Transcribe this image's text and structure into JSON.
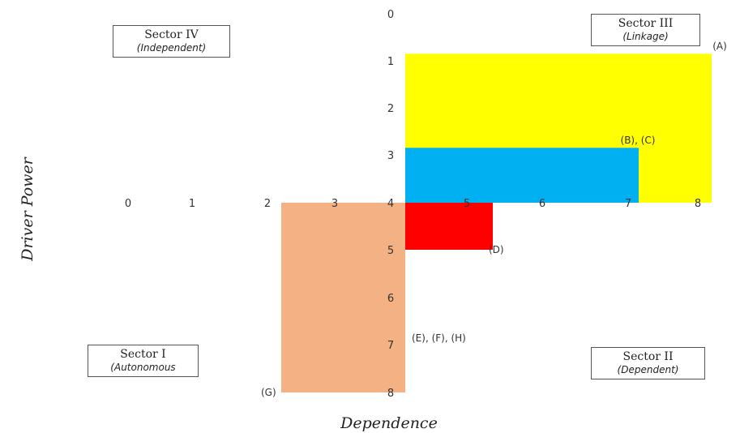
{
  "chart_data": {
    "type": "bar",
    "xlabel": "Dependence",
    "ylabel": "Driver Power",
    "xlim": [
      0,
      8
    ],
    "ylim": [
      0,
      8
    ],
    "x_ticks": [
      "0",
      "1",
      "2",
      "3",
      "4",
      "5",
      "6",
      "7",
      "8"
    ],
    "y_ticks": [
      "0",
      "1",
      "2",
      "3",
      "4",
      "5",
      "6",
      "7",
      "8"
    ],
    "quadrants": [
      {
        "title": "Sector IV",
        "subtitle": "(Independent)",
        "position": "top-left"
      },
      {
        "title": "Sector III",
        "subtitle": "(Linkage)",
        "position": "top-right"
      },
      {
        "title": "Sector I",
        "subtitle": "(Autonomous",
        "position": "bottom-left"
      },
      {
        "title": "Sector II",
        "subtitle": "(Dependent)",
        "position": "bottom-right"
      }
    ],
    "regions": [
      {
        "label": "(A)",
        "x0": 4,
        "x1": 8.2,
        "y0": 0.85,
        "y1": 4,
        "color": "#ffff00"
      },
      {
        "label": "(B), (C)",
        "x0": 4,
        "x1": 7.2,
        "y0": 2.85,
        "y1": 4,
        "color": "#00b0f0"
      },
      {
        "label": "(D)",
        "x0": 4,
        "x1": 5.2,
        "y0": 4,
        "y1": 5,
        "color": "#ff0000"
      },
      {
        "label": "(E), (F), (H)",
        "x0": 2.2,
        "x1": 4,
        "y0": 4,
        "y1": 8,
        "color": "#f4b183"
      },
      {
        "label": "(G)",
        "x0": 2.2,
        "x1": 4,
        "y0": 4,
        "y1": 8,
        "color": "#f4b183"
      }
    ]
  }
}
